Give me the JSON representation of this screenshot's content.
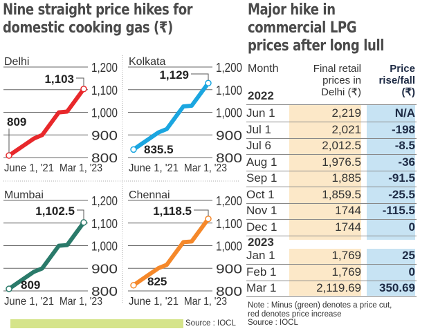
{
  "left_title": [
    "Nine straight price hikes for",
    "domestic cooking gas (₹)"
  ],
  "right_title": [
    "Major hike in",
    "commercial LPG",
    "prices after long lull"
  ],
  "chart_data": [
    {
      "type": "line",
      "title": "Delhi",
      "x_labels": [
        "June 1, '21",
        "Mar 1, '23"
      ],
      "ylim": [
        800,
        1200
      ],
      "y_ticks": [
        "800",
        "900",
        "1,000",
        "1,100",
        "1,200"
      ],
      "grid": true,
      "color": "#e8282b",
      "values": [
        809,
        834,
        859,
        884,
        899.5,
        949.5,
        999.5,
        1003,
        1053,
        1103
      ],
      "start_label": "809",
      "end_label": "1,103"
    },
    {
      "type": "line",
      "title": "Kolkata",
      "x_labels": [
        "June 1, '21",
        "Mar 1, '23"
      ],
      "ylim": [
        800,
        1200
      ],
      "y_ticks": [
        "800",
        "900",
        "1,000",
        "1,100",
        "1,200"
      ],
      "grid": true,
      "color": "#1ba6e0",
      "values": [
        835.5,
        861,
        886,
        911,
        926,
        976,
        1026,
        1029,
        1079,
        1129
      ],
      "start_label": "835.5",
      "end_label": "1,129"
    },
    {
      "type": "line",
      "title": "Mumbai",
      "x_labels": [
        "June 1, '21",
        "Mar 1, '23"
      ],
      "ylim": [
        800,
        1200
      ],
      "y_ticks": [
        "800",
        "900",
        "1,000",
        "1,100",
        "1,200"
      ],
      "grid": true,
      "color": "#2a7a6a",
      "values": [
        809,
        834.5,
        859.5,
        884.5,
        899.5,
        949.5,
        999.5,
        1002.5,
        1052.5,
        1102.5
      ],
      "start_label": "809",
      "end_label": "1,102.5"
    },
    {
      "type": "line",
      "title": "Chennai",
      "x_labels": [
        "June 1, '21",
        "Mar 1, '23"
      ],
      "ylim": [
        800,
        1200
      ],
      "y_ticks": [
        "800",
        "900",
        "1,000",
        "1,100",
        "1,200"
      ],
      "grid": true,
      "color": "#f5882a",
      "values": [
        825,
        850.5,
        875.5,
        900.5,
        915.5,
        965.5,
        1015.5,
        1018.5,
        1068.5,
        1118.5
      ],
      "start_label": "825",
      "end_label": "1,118.5"
    }
  ],
  "left_source": "Source : IOCL",
  "table": {
    "headers": {
      "month": "Month",
      "price": [
        "Final retail",
        "prices in",
        "Delhi (₹)"
      ],
      "change": [
        "Price",
        "rise/fall",
        "(₹)"
      ]
    },
    "groups": [
      {
        "year": "2022",
        "rows": [
          {
            "month": "Jun 1",
            "price": "2,219",
            "change": "N/A"
          },
          {
            "month": "Jul 1",
            "price": "2,021",
            "change": "-198"
          },
          {
            "month": "Jul 6",
            "price": "2,012.5",
            "change": "-8.5"
          },
          {
            "month": "Aug 1",
            "price": "1,976.5",
            "change": "-36"
          },
          {
            "month": "Sep 1",
            "price": "1,885",
            "change": "-91.5"
          },
          {
            "month": "Oct 1",
            "price": "1,859.5",
            "change": "-25.5"
          },
          {
            "month": "Nov 1",
            "price": "1744",
            "change": "-115.5"
          },
          {
            "month": "Dec 1",
            "price": "1744",
            "change": "0"
          }
        ]
      },
      {
        "year": "2023",
        "rows": [
          {
            "month": "Jan 1",
            "price": "1,769",
            "change": "25"
          },
          {
            "month": "Feb 1",
            "price": "1,769",
            "change": "0"
          },
          {
            "month": "Mar 1",
            "price": "2,119.69",
            "change": "350.69"
          }
        ]
      }
    ],
    "note": [
      "Note : Minus (green) denotes a price cut,",
      "red denotes price increase",
      "Source : IOCL"
    ]
  },
  "colors": {
    "price_column": "#fce8c8",
    "change_column": "#c7e3f3",
    "source_bar": "#d5e48a",
    "title": "#4a4a4a"
  }
}
